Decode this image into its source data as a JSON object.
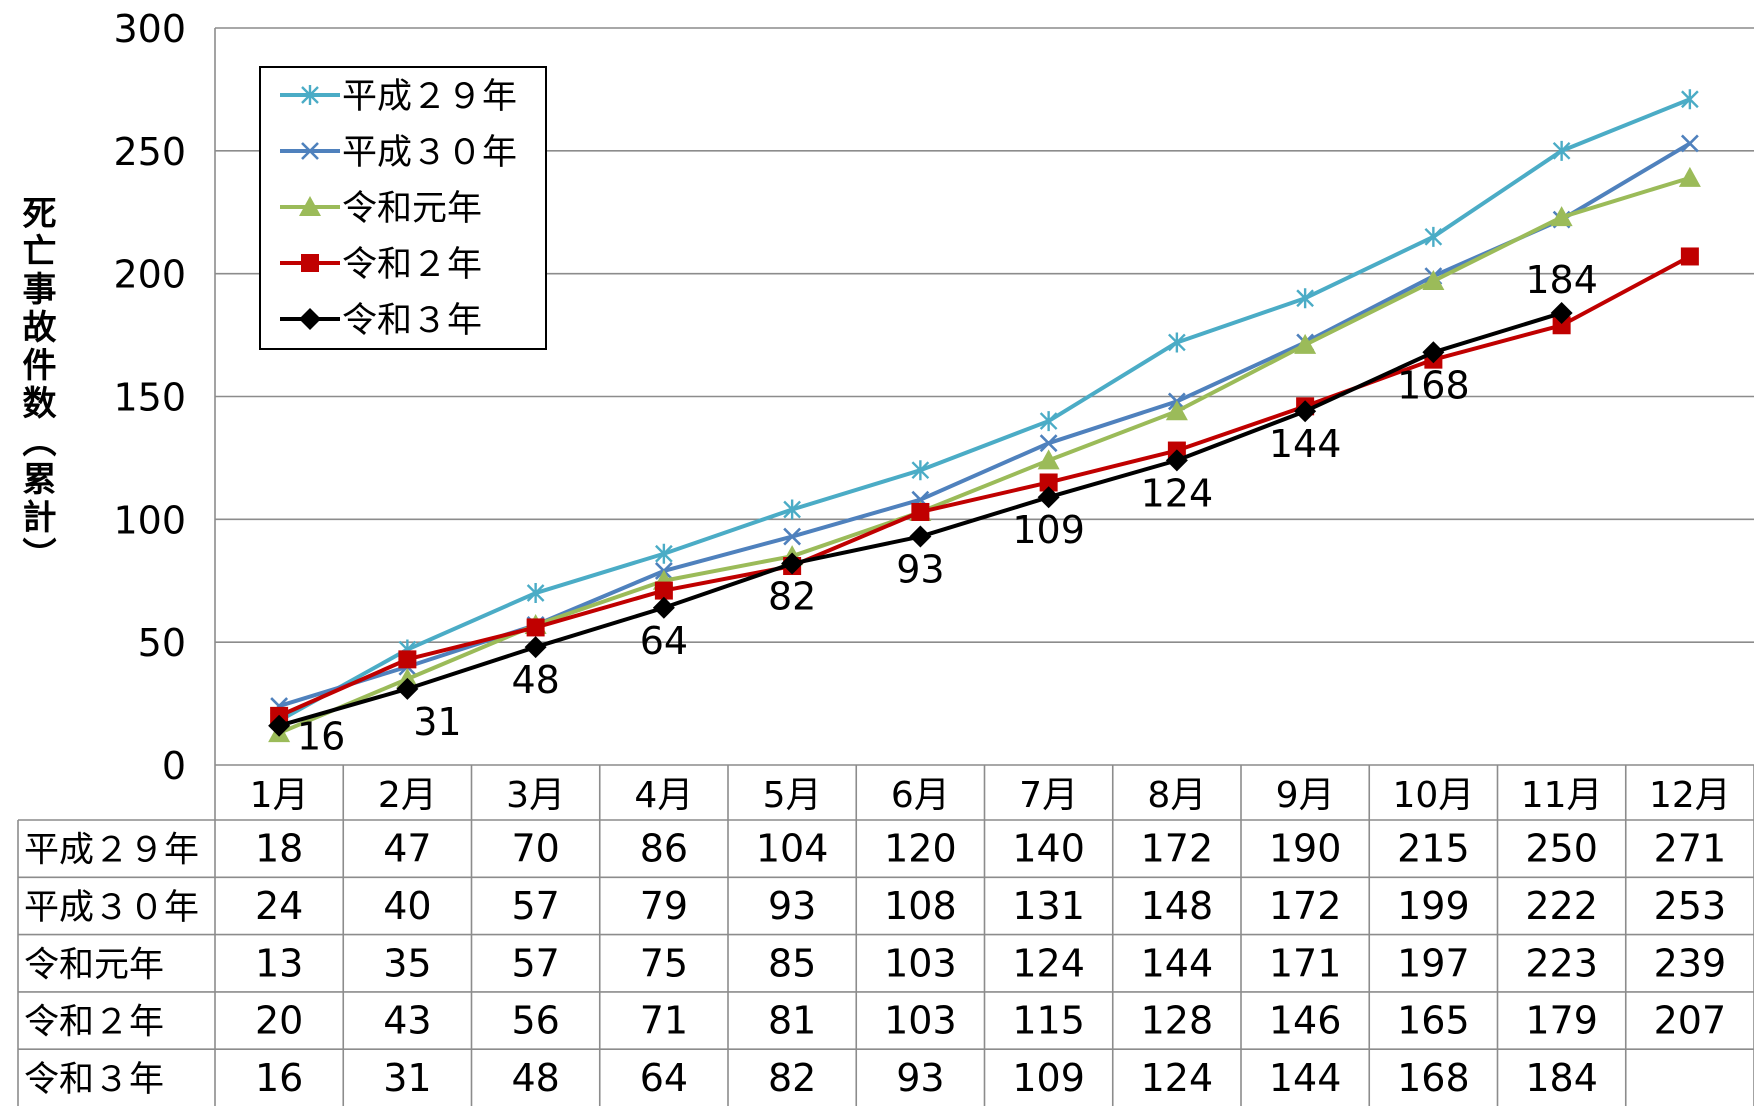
{
  "chart_data": {
    "type": "line",
    "title": "",
    "xlabel": "",
    "ylabel": "死亡事故件数（累計）",
    "ylim": [
      0,
      300
    ],
    "yticks": [
      0,
      50,
      100,
      150,
      200,
      250,
      300
    ],
    "grid": true,
    "legend_position": "top-left",
    "categories": [
      "1月",
      "2月",
      "3月",
      "4月",
      "5月",
      "6月",
      "7月",
      "8月",
      "9月",
      "10月",
      "11月",
      "12月"
    ],
    "series": [
      {
        "name": "平成２９年",
        "color": "#4BACC6",
        "marker": "asterisk",
        "values": [
          18,
          47,
          70,
          86,
          104,
          120,
          140,
          172,
          190,
          215,
          250,
          271
        ]
      },
      {
        "name": "平成３０年",
        "color": "#4F81BD",
        "marker": "x",
        "values": [
          24,
          40,
          57,
          79,
          93,
          108,
          131,
          148,
          172,
          199,
          222,
          253
        ]
      },
      {
        "name": "令和元年",
        "color": "#9BBB59",
        "marker": "triangle",
        "values": [
          13,
          35,
          57,
          75,
          85,
          103,
          124,
          144,
          171,
          197,
          223,
          239
        ]
      },
      {
        "name": "令和２年",
        "color": "#C00000",
        "marker": "square",
        "values": [
          20,
          43,
          56,
          71,
          81,
          103,
          115,
          128,
          146,
          165,
          179,
          207
        ]
      },
      {
        "name": "令和３年",
        "color": "#000000",
        "marker": "diamond",
        "values": [
          16,
          31,
          48,
          64,
          82,
          93,
          109,
          124,
          144,
          168,
          184,
          null
        ],
        "data_labels": true
      }
    ]
  }
}
